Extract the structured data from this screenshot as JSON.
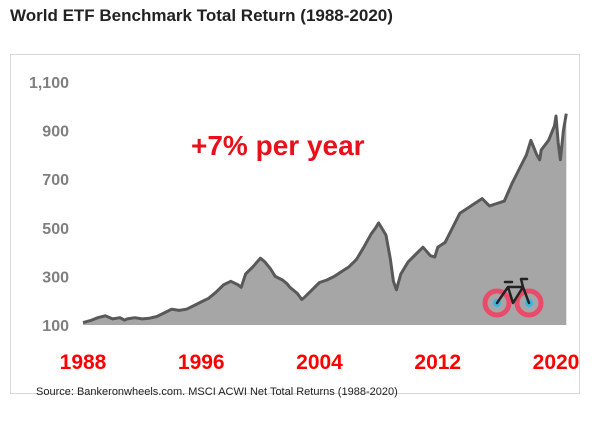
{
  "title": "World ETF Benchmark Total Return (1988-2020)",
  "source": "Source: Bankeronwheels.com. MSCI ACWI Net Total Returns (1988-2020)",
  "icon": "bicycle-icon",
  "chart_data": {
    "type": "area",
    "title": "World ETF Benchmark Total Return (1988-2020)",
    "xlabel": "",
    "ylabel": "",
    "xlim": [
      1988,
      2020
    ],
    "ylim": [
      100,
      1100
    ],
    "y_ticks": [
      "1,100",
      "900",
      "700",
      "500",
      "300",
      "100"
    ],
    "y_tick_values": [
      1100,
      900,
      700,
      500,
      300,
      100
    ],
    "x_ticks": [
      "1988",
      "1996",
      "2004",
      "2012",
      "2020"
    ],
    "x_tick_values": [
      1988,
      1996,
      2004,
      2012,
      2020
    ],
    "annotation": "+7% per year",
    "grid": false,
    "legend": "none",
    "colors": {
      "fill": "#a6a6a6",
      "line": "#595959",
      "ticks_y": "#7f7f7f",
      "ticks_x": "#ff0000",
      "annotation": "#e8101a",
      "icon": "#e84c6a"
    },
    "series": [
      {
        "x": [
          1988.0,
          1988.5,
          1989.0,
          1989.5,
          1990.0,
          1990.5,
          1990.8,
          1991.0,
          1991.5,
          1992.0,
          1992.5,
          1993.0,
          1993.5,
          1994.0,
          1994.5,
          1995.0,
          1995.5,
          1996.0,
          1996.5,
          1997.0,
          1997.5,
          1998.0,
          1998.5,
          1998.7,
          1999.0,
          1999.5,
          2000.0,
          2000.3,
          2000.7,
          2001.0,
          2001.5,
          2001.8,
          2002.0,
          2002.5,
          2002.8,
          2003.0,
          2003.5,
          2004.0,
          2004.5,
          2005.0,
          2005.5,
          2006.0,
          2006.5,
          2007.0,
          2007.5,
          2007.8,
          2008.0,
          2008.5,
          2008.8,
          2009.0,
          2009.2,
          2009.5,
          2010.0,
          2010.5,
          2011.0,
          2011.5,
          2011.8,
          2012.0,
          2012.5,
          2013.0,
          2013.5,
          2014.0,
          2014.5,
          2015.0,
          2015.5,
          2016.0,
          2016.5,
          2017.0,
          2017.5,
          2018.0,
          2018.3,
          2018.7,
          2018.9,
          2019.0,
          2019.5,
          2019.9,
          2020.0,
          2020.15,
          2020.3,
          2020.5,
          2020.7
        ],
        "y": [
          110,
          118,
          130,
          138,
          125,
          130,
          120,
          125,
          130,
          125,
          128,
          135,
          150,
          165,
          160,
          165,
          180,
          195,
          210,
          235,
          265,
          280,
          265,
          255,
          310,
          340,
          375,
          360,
          330,
          300,
          285,
          270,
          255,
          230,
          205,
          215,
          245,
          275,
          285,
          300,
          320,
          340,
          370,
          420,
          475,
          500,
          520,
          470,
          370,
          280,
          245,
          310,
          360,
          390,
          420,
          385,
          380,
          420,
          440,
          500,
          560,
          580,
          600,
          620,
          590,
          600,
          610,
          680,
          740,
          800,
          860,
          800,
          780,
          820,
          860,
          920,
          960,
          850,
          780,
          900,
          970
        ]
      }
    ]
  }
}
